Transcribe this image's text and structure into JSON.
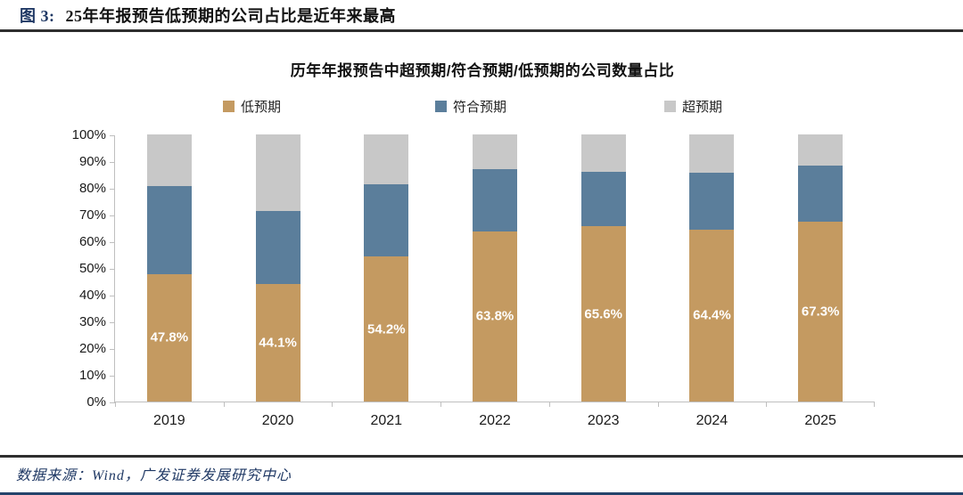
{
  "figure": {
    "label": "图 3:",
    "title": "25年年报预告低预期的公司占比是近年来最高"
  },
  "chart_data": {
    "type": "bar",
    "stacked": true,
    "title": "历年年报预告中超预期/符合预期/低预期的公司数量占比",
    "categories": [
      "2019",
      "2020",
      "2021",
      "2022",
      "2023",
      "2024",
      "2025"
    ],
    "series": [
      {
        "id": "low",
        "name": "低预期",
        "color": "#C49A61",
        "values": [
          47.8,
          44.1,
          54.2,
          63.8,
          65.6,
          64.4,
          67.3
        ],
        "labels": [
          "47.8%",
          "44.1%",
          "54.2%",
          "63.8%",
          "65.6%",
          "64.4%",
          "67.3%"
        ]
      },
      {
        "id": "meet",
        "name": "符合预期",
        "color": "#5B7E9B",
        "values": [
          32.9,
          27.4,
          27.3,
          23.2,
          20.4,
          21.3,
          20.9
        ]
      },
      {
        "id": "beat",
        "name": "超预期",
        "color": "#C8C8C8",
        "values": [
          19.3,
          28.5,
          18.5,
          13.0,
          14.0,
          14.3,
          11.8
        ]
      }
    ],
    "ylim": [
      0,
      100
    ],
    "ytick_step": 10,
    "yticks": [
      "0%",
      "10%",
      "20%",
      "30%",
      "40%",
      "50%",
      "60%",
      "70%",
      "80%",
      "90%",
      "100%"
    ],
    "legend_position": "top",
    "grid": false
  },
  "footer": {
    "source": "数据来源：Wind，广发证券发展研究中心"
  }
}
